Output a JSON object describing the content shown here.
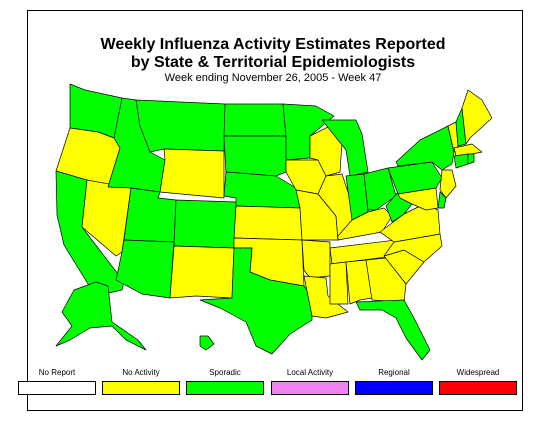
{
  "title_line1": "Weekly Influenza Activity Estimates Reported",
  "title_line2": "by State & Territorial Epidemiologists",
  "subtitle": "Week ending November 26, 2005 - Week 47",
  "colors": {
    "no_report": "#ffffff",
    "no_activity": "#ffff00",
    "sporadic": "#00ff00",
    "local_activity": "#ee82ee",
    "regional": "#0000ff",
    "widespread": "#ff0000"
  },
  "legend": [
    {
      "label": "No Report",
      "color": "#ffffff"
    },
    {
      "label": "No Activity",
      "color": "#ffff00"
    },
    {
      "label": "Sporadic",
      "color": "#00ff00"
    },
    {
      "label": "Local Activity",
      "color": "#ee82ee"
    },
    {
      "label": "Regional",
      "color": "#0000ff"
    },
    {
      "label": "Widespread",
      "color": "#ff0000"
    }
  ],
  "states": {
    "WA": "sporadic",
    "OR": "no_activity",
    "CA": "sporadic",
    "NV": "no_activity",
    "ID": "sporadic",
    "MT": "sporadic",
    "WY": "no_activity",
    "UT": "sporadic",
    "AZ": "sporadic",
    "CO": "sporadic",
    "NM": "no_activity",
    "ND": "sporadic",
    "SD": "sporadic",
    "NE": "sporadic",
    "KS": "no_activity",
    "OK": "no_activity",
    "TX": "sporadic",
    "MN": "sporadic",
    "IA": "no_activity",
    "MO": "no_activity",
    "AR": "no_activity",
    "LA": "no_activity",
    "WI": "no_activity",
    "IL": "no_activity",
    "MI": "sporadic",
    "IN": "sporadic",
    "OH": "sporadic",
    "KY": "no_activity",
    "TN": "no_activity",
    "MS": "no_activity",
    "AL": "no_activity",
    "GA": "no_activity",
    "FL": "sporadic",
    "SC": "no_activity",
    "NC": "no_activity",
    "VA": "no_activity",
    "WV": "sporadic",
    "PA": "sporadic",
    "NY": "sporadic",
    "VT": "no_activity",
    "NH": "sporadic",
    "ME": "no_activity",
    "MA": "no_activity",
    "CT": "sporadic",
    "RI": "sporadic",
    "NJ": "no_activity",
    "DE": "sporadic",
    "MD": "no_activity",
    "AK": "sporadic",
    "HI": "sporadic"
  }
}
